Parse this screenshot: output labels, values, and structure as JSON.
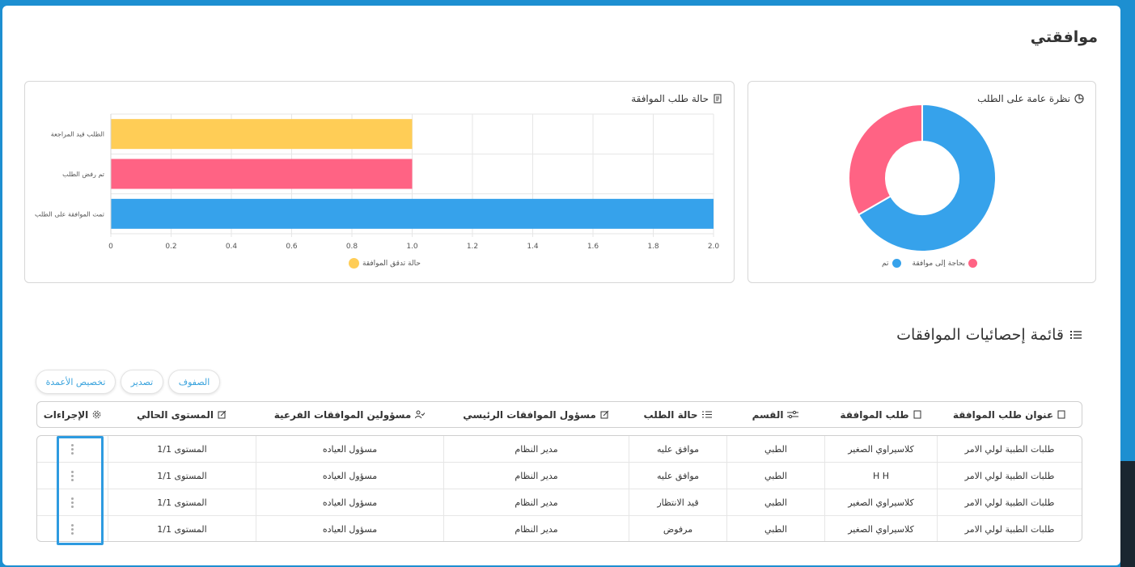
{
  "page": {
    "title": "موافقتي"
  },
  "pie_card": {
    "title": "نظرة عامة على الطلب",
    "legend": [
      {
        "label": "بحاجة إلى موافقة",
        "color": "#ff6384"
      },
      {
        "label": "تم",
        "color": "#36a2eb"
      }
    ]
  },
  "bar_card": {
    "title": "حالة طلب الموافقة",
    "legend_label": "حالة تدقق الموافقة",
    "legend_color": "#ffcd56"
  },
  "chart_data": [
    {
      "type": "pie",
      "labels": [
        "تم",
        "بحاجة إلى موافقة"
      ],
      "values": [
        2,
        1
      ],
      "colors": [
        "#36a2eb",
        "#ff6384"
      ]
    },
    {
      "type": "bar",
      "orientation": "horizontal",
      "categories": [
        "الطلب قيد المراجعة",
        "تم رفض الطلب",
        "تمت الموافقة على الطلب"
      ],
      "values": [
        1.0,
        1.0,
        2.0
      ],
      "colors": [
        "#ffcd56",
        "#ff6384",
        "#36a2eb"
      ],
      "xlim": [
        0,
        2.0
      ],
      "xticks": [
        "0",
        "0.2",
        "0.4",
        "0.6",
        "0.8",
        "1.0",
        "1.2",
        "1.4",
        "1.6",
        "1.8",
        "2.0"
      ],
      "grid": true,
      "legend": "bottom"
    }
  ],
  "list": {
    "title": "قائمة إحصائيات الموافقات",
    "buttons": {
      "rows": "الصفوف",
      "export": "تصدير",
      "customize": "تخصيص الأعمدة"
    },
    "columns": [
      "عنوان طلب الموافقة",
      "طلب الموافقة",
      "القسم",
      "حالة الطلب",
      "مسؤول الموافقات الرئيسي",
      "مسؤولين الموافقات الفرعية",
      "المستوى الحالي",
      "الإجراءات"
    ],
    "rows": [
      [
        "طلبات الطبية لولي الامر",
        "كلاسيراوي الصغير",
        "الطبي",
        "موافق عليه",
        "مدير النظام",
        "مسؤول العياده",
        "المستوى 1/1"
      ],
      [
        "طلبات الطبية لولي الامر",
        "H H",
        "الطبي",
        "موافق عليه",
        "مدير النظام",
        "مسؤول العياده",
        "المستوى 1/1"
      ],
      [
        "طلبات الطبية لولي الامر",
        "كلاسيراوي الصغير",
        "الطبي",
        "قيد الانتظار",
        "مدير النظام",
        "مسؤول العياده",
        "المستوى 1/1"
      ],
      [
        "طلبات الطبية لولي الامر",
        "كلاسيراوي الصغير",
        "الطبي",
        "مرفوض",
        "مدير النظام",
        "مسؤول العياده",
        "المستوى 1/1"
      ]
    ]
  }
}
